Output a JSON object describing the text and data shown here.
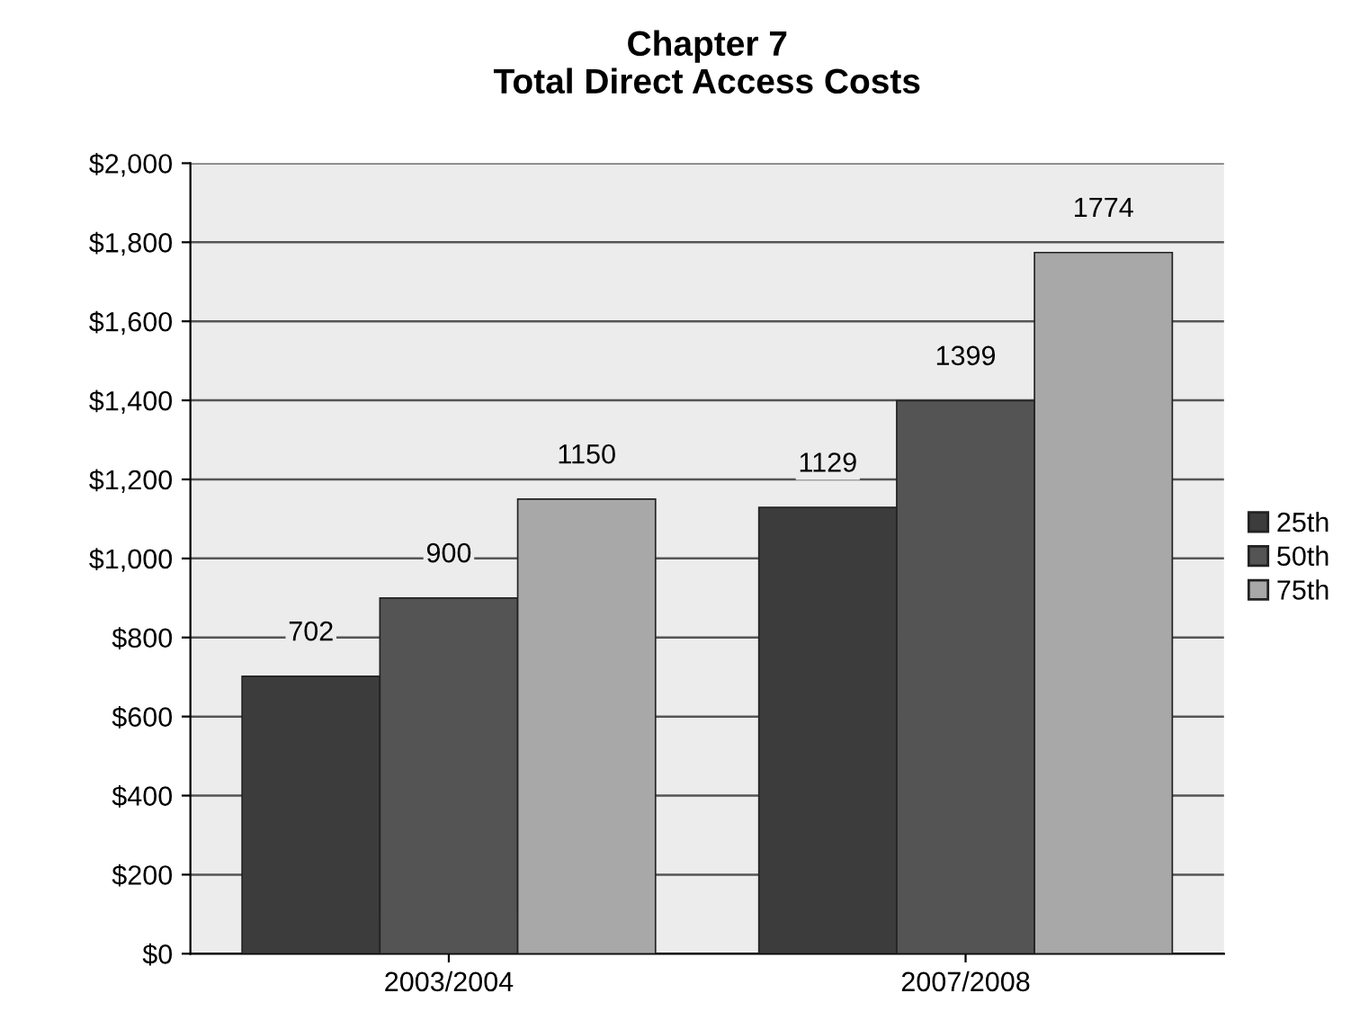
{
  "chart_data": {
    "type": "bar",
    "title": "Chapter 7\nTotal Direct Access Costs",
    "categories": [
      "2003/2004",
      "2007/2008"
    ],
    "series": [
      {
        "name": "25th",
        "color": "#3c3c3c",
        "values": [
          702,
          1129
        ]
      },
      {
        "name": "50th",
        "color": "#545454",
        "values": [
          900,
          1399
        ]
      },
      {
        "name": "75th",
        "color": "#a8a8a8",
        "values": [
          1150,
          1774
        ]
      }
    ],
    "ylim": [
      0,
      2000
    ],
    "yticks": [
      {
        "value": 0,
        "label": "$0"
      },
      {
        "value": 200,
        "label": "$200"
      },
      {
        "value": 400,
        "label": "$400"
      },
      {
        "value": 600,
        "label": "$600"
      },
      {
        "value": 800,
        "label": "$800"
      },
      {
        "value": 1000,
        "label": "$1,000"
      },
      {
        "value": 1200,
        "label": "$1,200"
      },
      {
        "value": 1400,
        "label": "$1,400"
      },
      {
        "value": 1600,
        "label": "$1,600"
      },
      {
        "value": 1800,
        "label": "$1,800"
      },
      {
        "value": 2000,
        "label": "$2,000"
      }
    ],
    "grid": "y",
    "legend": "right",
    "data_labels": true
  }
}
